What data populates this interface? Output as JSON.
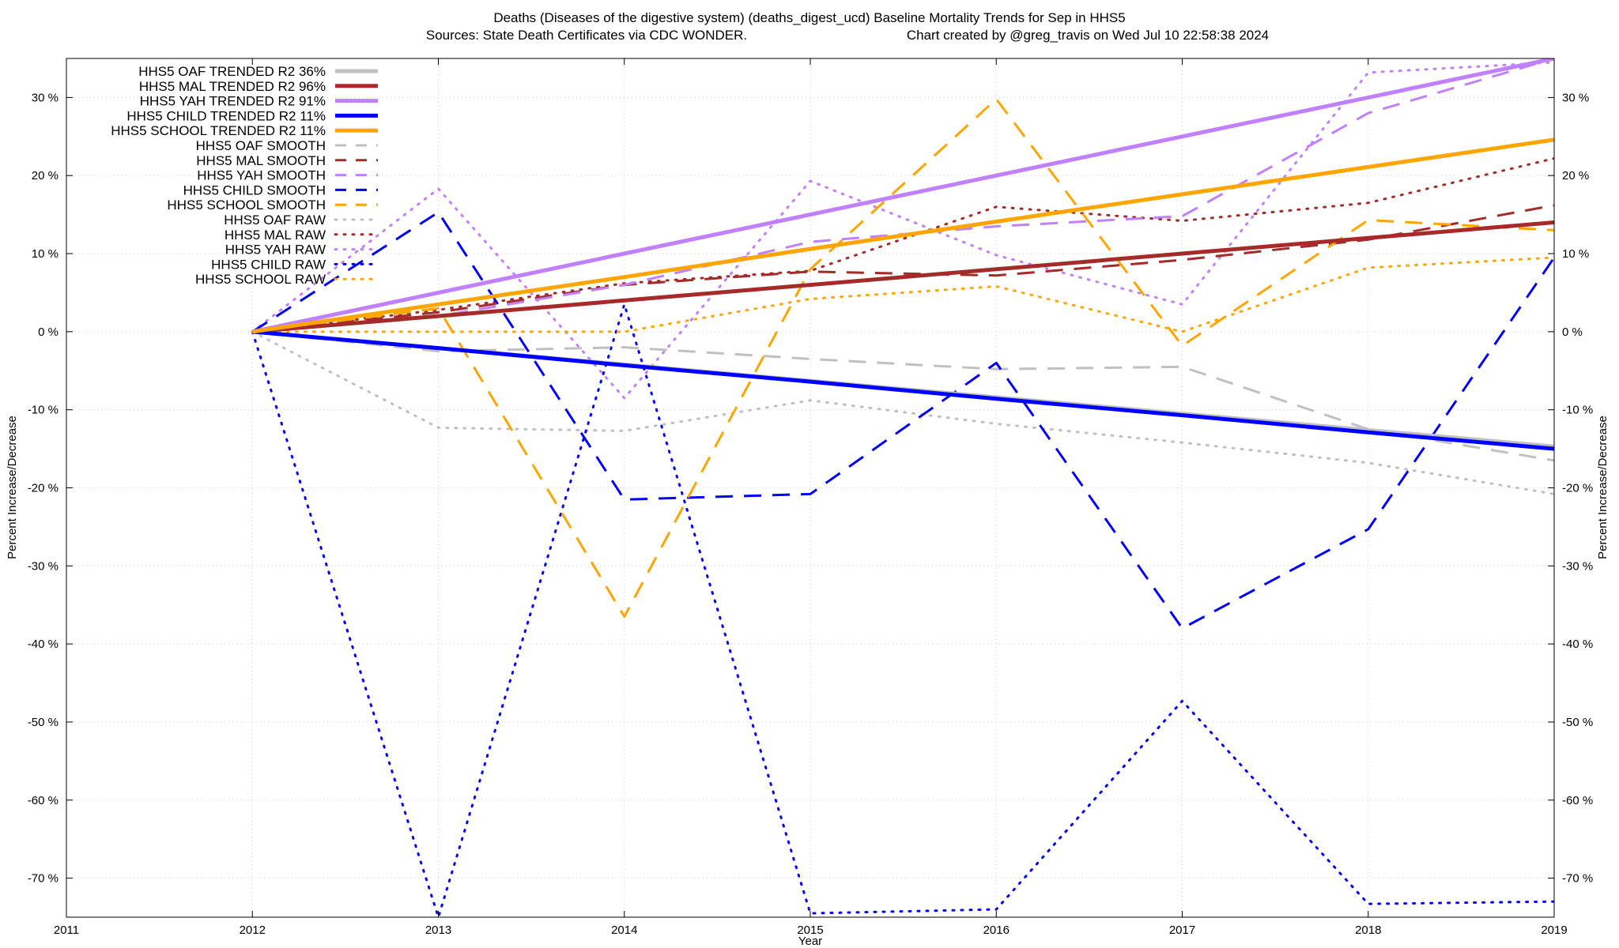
{
  "chart_data": {
    "type": "line",
    "title_line1": "Deaths (Diseases of the digestive system) (deaths_digest_ucd)  Baseline Mortality Trends for Sep in HHS5",
    "title_line2_left": "Sources: State Death Certificates via CDC WONDER.",
    "title_line2_right": "Chart created by @greg_travis on Wed Jul 10 22:58:38 2024",
    "xlabel": "Year",
    "ylabel_left": "Percent Increase/Decrease",
    "ylabel_right": "Percent Increase/Decrease",
    "xlim": [
      2011,
      2019
    ],
    "ylim": [
      -75,
      35
    ],
    "grid": true,
    "legend_position": "top-left",
    "x_ticks": [
      "2011",
      "2012",
      "2013",
      "2014",
      "2015",
      "2016",
      "2017",
      "2018",
      "2019"
    ],
    "y_ticks": [
      {
        "value": 30,
        "label": "30 %"
      },
      {
        "value": 20,
        "label": "20 %"
      },
      {
        "value": 10,
        "label": "10 %"
      },
      {
        "value": 0,
        "label": "0 %"
      },
      {
        "value": -10,
        "label": "-10 %"
      },
      {
        "value": -20,
        "label": "-20 %"
      },
      {
        "value": -30,
        "label": "-30 %"
      },
      {
        "value": -40,
        "label": "-40 %"
      },
      {
        "value": -50,
        "label": "-50 %"
      },
      {
        "value": -60,
        "label": "-60 %"
      },
      {
        "value": -70,
        "label": "-70 %"
      }
    ],
    "x": [
      2012,
      2013,
      2014,
      2015,
      2016,
      2017,
      2018,
      2019
    ],
    "series": [
      {
        "name": "HHS5 OAF TRENDED R2  36%",
        "color": "#c0c0c0",
        "style": "solid",
        "values": [
          0,
          -2.1,
          -4.2,
          -6.3,
          -8.4,
          -10.5,
          -12.6,
          -14.7
        ]
      },
      {
        "name": "HHS5 MAL TRENDED R2  96%",
        "color": "#a52a2a",
        "style": "solid",
        "values": [
          0,
          2.0,
          4.0,
          6.0,
          8.0,
          10.0,
          12.0,
          14.0
        ]
      },
      {
        "name": "HHS5 YAH TRENDED R2  91%",
        "color": "#c080ff",
        "style": "solid",
        "values": [
          0,
          5.0,
          10.0,
          15.0,
          20.0,
          25.0,
          30.0,
          35.0
        ]
      },
      {
        "name": "HHS5 CHILD TRENDED R2  11%",
        "color": "#0000ff",
        "style": "solid",
        "values": [
          0,
          -2.1,
          -4.3,
          -6.4,
          -8.6,
          -10.7,
          -12.9,
          -15.0
        ]
      },
      {
        "name": "HHS5 SCHOOL TRENDED R2  11%",
        "color": "#ffa500",
        "style": "solid",
        "values": [
          0,
          3.5,
          7.0,
          10.6,
          14.1,
          17.6,
          21.1,
          24.6
        ]
      },
      {
        "name": "HHS5 OAF SMOOTH",
        "color": "#c0c0c0",
        "style": "dashed",
        "values": [
          0,
          -2.5,
          -2.0,
          -3.5,
          -4.8,
          -4.5,
          -12.5,
          -16.5
        ]
      },
      {
        "name": "HHS5 MAL SMOOTH",
        "color": "#a52a2a",
        "style": "dashed",
        "values": [
          0,
          2.5,
          6.0,
          7.7,
          7.2,
          9.2,
          11.8,
          16.2
        ]
      },
      {
        "name": "HHS5 YAH SMOOTH",
        "color": "#c080ff",
        "style": "dashed",
        "values": [
          0,
          2.0,
          6.0,
          11.5,
          13.5,
          14.8,
          28.0,
          35.0
        ]
      },
      {
        "name": "HHS5 CHILD SMOOTH",
        "color": "#0000ff",
        "style": "dashed",
        "values": [
          0,
          15.3,
          -21.5,
          -20.8,
          -4.0,
          -38.0,
          -25.3,
          9.5
        ]
      },
      {
        "name": "HHS5 SCHOOL SMOOTH",
        "color": "#ffa500",
        "style": "dashed",
        "values": [
          0,
          3.0,
          -36.5,
          8.0,
          29.8,
          -1.8,
          14.3,
          13.0
        ]
      },
      {
        "name": "HHS5 OAF RAW",
        "color": "#c0c0c0",
        "style": "dotted",
        "values": [
          0,
          -12.3,
          -12.7,
          -8.8,
          -11.8,
          -14.2,
          -16.8,
          -20.8
        ]
      },
      {
        "name": "HHS5 MAL RAW",
        "color": "#a52a2a",
        "style": "dotted",
        "values": [
          0,
          2.8,
          6.2,
          7.8,
          16.0,
          14.2,
          16.5,
          22.2
        ]
      },
      {
        "name": "HHS5 YAH RAW",
        "color": "#c080ff",
        "style": "dotted",
        "values": [
          0,
          18.3,
          -8.5,
          19.3,
          9.8,
          3.5,
          33.2,
          34.5
        ]
      },
      {
        "name": "HHS5 CHILD RAW",
        "color": "#0000ff",
        "style": "dotted",
        "values": [
          0,
          -75.0,
          3.5,
          -74.5,
          -74.0,
          -47.3,
          -73.3,
          -73.0
        ]
      },
      {
        "name": "HHS5 SCHOOL RAW",
        "color": "#ffa500",
        "style": "dotted",
        "values": [
          0,
          0,
          0,
          4.2,
          5.8,
          0,
          8.2,
          9.5
        ]
      }
    ]
  }
}
